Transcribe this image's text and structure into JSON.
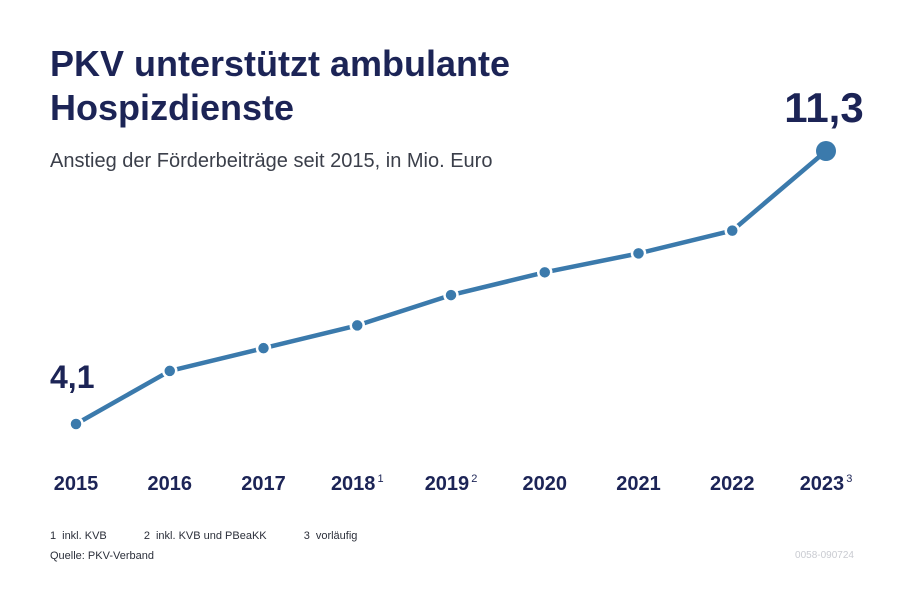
{
  "header": {
    "title": "PKV unterstützt ambulante Hospizdienste",
    "subtitle": "Anstieg der Förderbeiträge seit 2015, in Mio. Euro"
  },
  "chart_data": {
    "type": "line",
    "title": "PKV unterstützt ambulante Hospizdienste",
    "subtitle": "Anstieg der Förderbeiträge seit 2015, in Mio. Euro",
    "categories": [
      "2015",
      "2016",
      "2017",
      "2018",
      "2019",
      "2020",
      "2021",
      "2022",
      "2023"
    ],
    "category_notes": [
      "",
      "",
      "",
      "1",
      "2",
      "",
      "",
      "",
      "3"
    ],
    "values": [
      4.1,
      5.5,
      6.1,
      6.7,
      7.5,
      8.1,
      8.6,
      9.2,
      11.3
    ],
    "value_labels": [
      "4,1",
      "",
      "",
      "",
      "",
      "",
      "",
      "",
      "11,3"
    ],
    "ylim": [
      4.1,
      11.3
    ],
    "grid": false,
    "legend": "none",
    "line_color": "#3b7aac",
    "label_color": "#1c2456"
  },
  "footnotes": [
    {
      "num": "1",
      "text": "inkl. KVB"
    },
    {
      "num": "2",
      "text": "inkl. KVB und PBeaKK"
    },
    {
      "num": "3",
      "text": "vorläufig"
    }
  ],
  "source": "Quelle: PKV-Verband",
  "code": "0058-090724"
}
